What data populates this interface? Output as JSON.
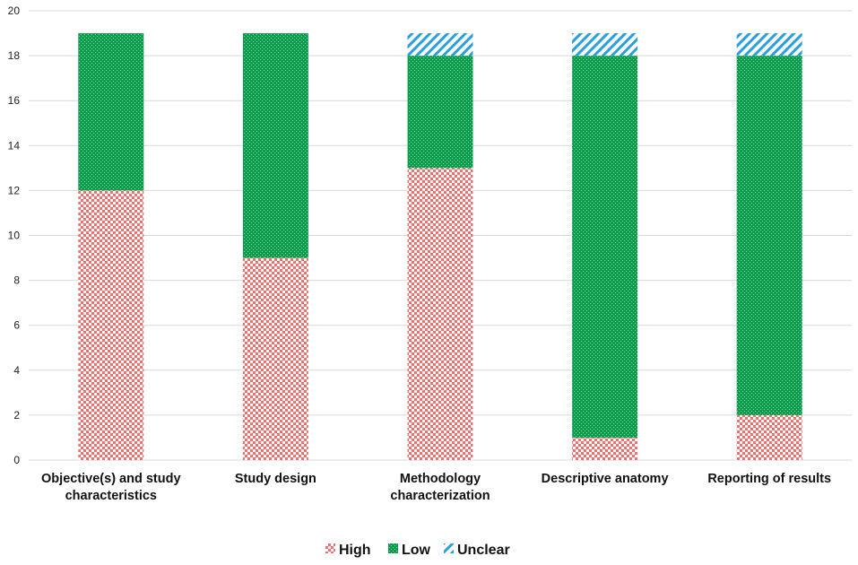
{
  "chart_data": {
    "type": "bar",
    "stacked": true,
    "categories": [
      [
        "Objective(s) and study",
        "characteristics"
      ],
      [
        "Study design"
      ],
      [
        "Methodology",
        "characterization"
      ],
      [
        "Descriptive anatomy"
      ],
      [
        "Reporting of results"
      ]
    ],
    "series": [
      {
        "name": "High",
        "values": [
          12,
          9,
          13,
          1,
          2
        ],
        "color": "#f07070",
        "pattern": "checker"
      },
      {
        "name": "Low",
        "values": [
          7,
          10,
          5,
          17,
          16
        ],
        "color": "#0d9c4e",
        "pattern": "dots"
      },
      {
        "name": "Unclear",
        "values": [
          0,
          0,
          1,
          1,
          1
        ],
        "color": "#2a9fd8",
        "pattern": "diagonal"
      }
    ],
    "ylim": [
      0,
      20
    ],
    "yticks": [
      0,
      2,
      4,
      6,
      8,
      10,
      12,
      14,
      16,
      18,
      20
    ],
    "xlabel": "",
    "ylabel": "",
    "title": "",
    "grid": true,
    "legend_position": "bottom-center"
  }
}
